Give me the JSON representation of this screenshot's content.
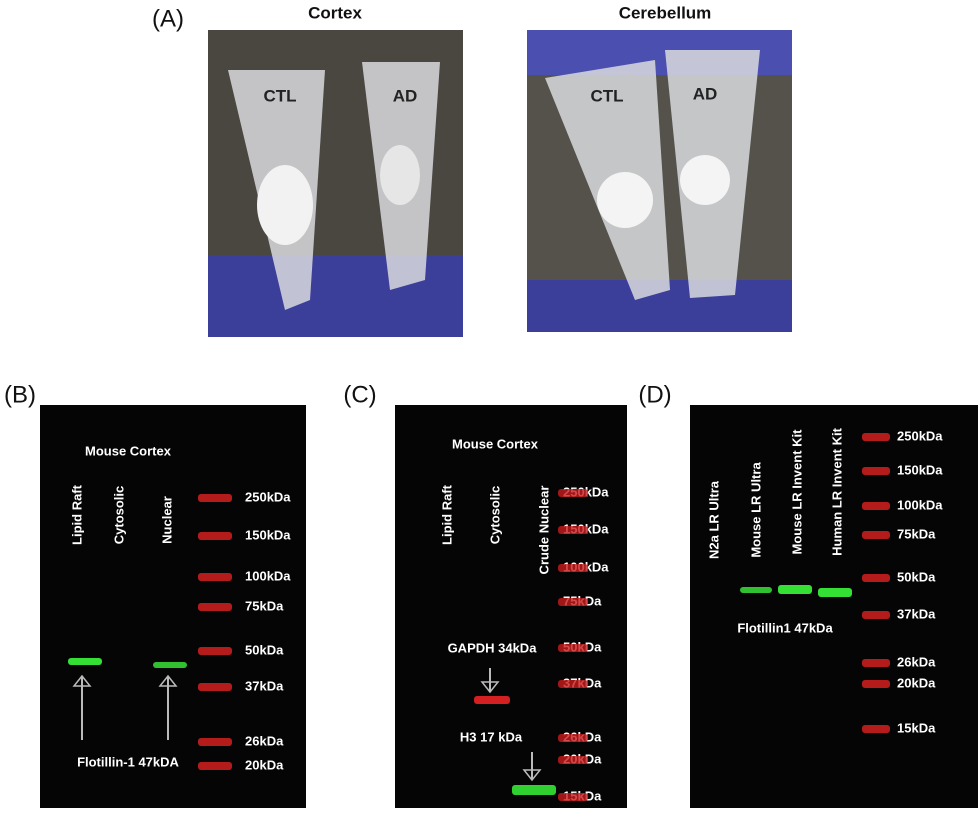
{
  "panel_a": {
    "label": "(A)",
    "cortex": {
      "title": "Cortex",
      "tubes": [
        "CTL",
        "AD"
      ]
    },
    "cerebellum": {
      "title": "Cerebellum",
      "tubes": [
        "CTL",
        "AD"
      ]
    }
  },
  "panel_b": {
    "label": "(B)",
    "sample": "Mouse Cortex",
    "lanes": [
      "Lipid Raft",
      "Cytosolic",
      "Nuclear"
    ],
    "markers": [
      "250kDa",
      "150kDa",
      "100kDa",
      "75kDa",
      "50kDa",
      "37kDa",
      "26kDa",
      "20kDa"
    ],
    "band_label": "Flotillin-1 47kDA"
  },
  "panel_c": {
    "label": "(C)",
    "sample": "Mouse Cortex",
    "lanes": [
      "Lipid Raft",
      "Cytosolic",
      "Crude Nuclear"
    ],
    "markers": [
      "250kDa",
      "150kDa",
      "100kDa",
      "75kDa",
      "50kDa",
      "37kDa",
      "26kDa",
      "20kDa",
      "15kDa"
    ],
    "band_labels": [
      "GAPDH 34kDa",
      "H3 17 kDa"
    ]
  },
  "panel_d": {
    "label": "(D)",
    "lanes": [
      "N2a LR Ultra",
      "Mouse LR Ultra",
      "Mouse LR Invent Kit",
      "Human LR Invent Kit"
    ],
    "markers": [
      "250kDa",
      "150kDa",
      "100kDa",
      "75kDa",
      "50kDa",
      "37kDa",
      "26kDa",
      "20kDa",
      "15kDa"
    ],
    "band_label": "Flotillin1 47kDa"
  }
}
